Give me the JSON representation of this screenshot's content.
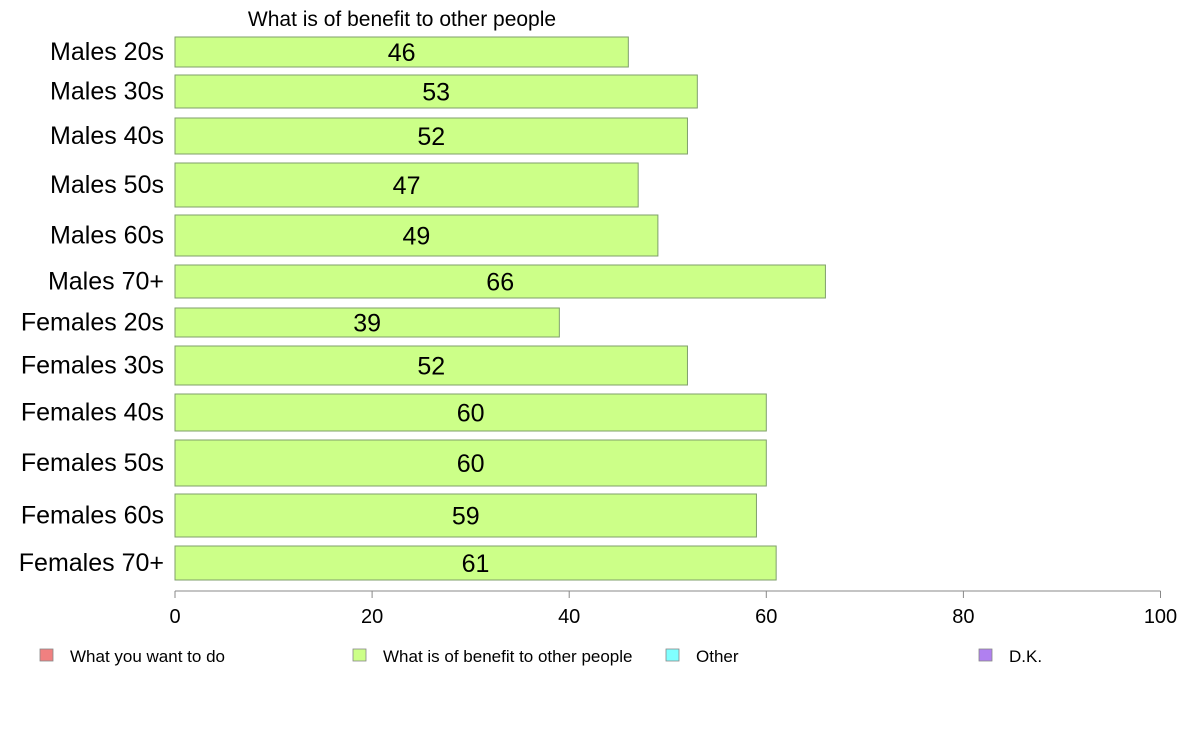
{
  "chart_data": {
    "type": "bar",
    "orientation": "horizontal",
    "title": "What is of benefit to other people",
    "categories": [
      "Males 20s",
      "Males 30s",
      "Males 40s",
      "Males 50s",
      "Males 60s",
      "Males 70+",
      "Females 20s",
      "Females 30s",
      "Females 40s",
      "Females 50s",
      "Females 60s",
      "Females 70+"
    ],
    "series": [
      {
        "name": "What is of benefit to other people",
        "values": [
          46,
          53,
          52,
          47,
          49,
          66,
          39,
          52,
          60,
          60,
          59,
          61
        ],
        "color": "#ccff88"
      }
    ],
    "xlim": [
      0,
      100
    ],
    "xticks": [
      0,
      20,
      40,
      60,
      80,
      100
    ],
    "grid": false,
    "legend": {
      "position": "bottom",
      "entries": [
        {
          "label": "What you want to do",
          "color": "#f08080"
        },
        {
          "label": "What is of benefit to other people",
          "color": "#ccff88"
        },
        {
          "label": "Other",
          "color": "#80ffff"
        },
        {
          "label": "D.K.",
          "color": "#b080f0"
        }
      ]
    }
  }
}
